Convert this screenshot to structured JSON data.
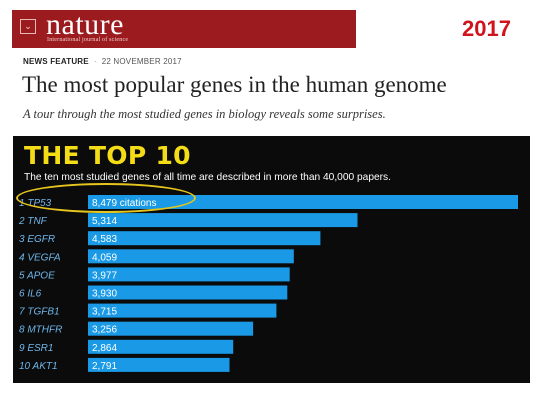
{
  "masthead": {
    "menu_glyph": "⌄",
    "name": "nature",
    "subtitle": "International journal of science"
  },
  "year_label": "2017",
  "article": {
    "kicker": "NEWS FEATURE",
    "separator": "·",
    "date": "22 NOVEMBER 2017",
    "headline": "The most popular genes in the human genome",
    "standfirst": "A tour through the most studied genes in biology reveals some surprises."
  },
  "colors": {
    "masthead_bg": "#9b1b1e",
    "year": "#d0141d",
    "panel_bg": "#0b0b0b",
    "title_yellow": "#f4dd16",
    "bar_blue": "#1a9ae6",
    "highlight": "#e6c51f"
  },
  "chart_data": {
    "type": "bar",
    "orientation": "horizontal",
    "title": "THE TOP 10",
    "subtitle": "The ten most studied genes of all time are described in more than 40,000 papers.",
    "categories": [
      "1 TP53",
      "2 TNF",
      "3 EGFR",
      "4 VEGFA",
      "5 APOE",
      "6 IL6",
      "7 TGFB1",
      "8 MTHFR",
      "9 ESR1",
      "10 AKT1"
    ],
    "values": [
      8479,
      5314,
      4583,
      4059,
      3977,
      3930,
      3715,
      3256,
      2864,
      2791
    ],
    "value_labels": [
      "8,479 citations",
      "5,314",
      "4,583",
      "4,059",
      "3,977",
      "3,930",
      "3,715",
      "3,256",
      "2,864",
      "2,791"
    ],
    "highlighted_category": "1 TP53"
  }
}
